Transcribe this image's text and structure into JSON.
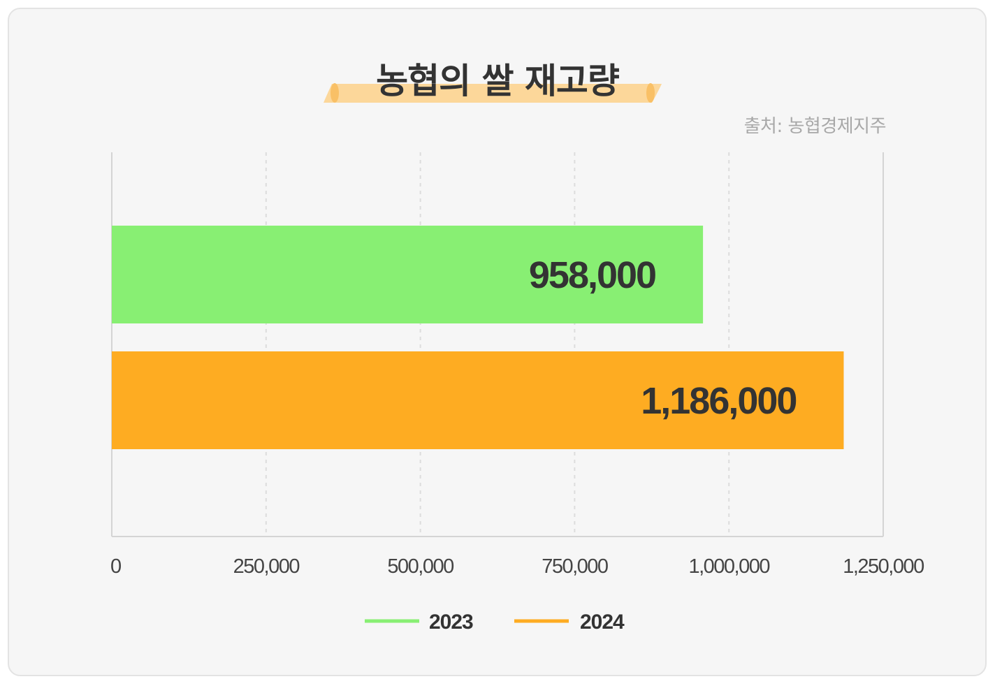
{
  "title": "농협의 쌀 재고량",
  "source": "출처: 농협경제지주",
  "colors": {
    "2023": "#88ef73",
    "2024": "#feac22",
    "highlight": "#fcd79a",
    "card_bg": "#f6f6f6"
  },
  "chart_data": {
    "type": "bar",
    "orientation": "horizontal",
    "title": "농협의 쌀 재고량",
    "xlim": [
      0,
      1250000
    ],
    "ticks": [
      0,
      250000,
      500000,
      750000,
      1000000,
      1250000
    ],
    "tick_labels": [
      "0",
      "250,000",
      "500,000",
      "750,000",
      "1,000,000",
      "1,250,000"
    ],
    "grid": true,
    "legend_position": "bottom-center",
    "series": [
      {
        "name": "2023",
        "value": 958000,
        "label": "958,000"
      },
      {
        "name": "2024",
        "value": 1186000,
        "label": "1,186,000"
      }
    ]
  }
}
